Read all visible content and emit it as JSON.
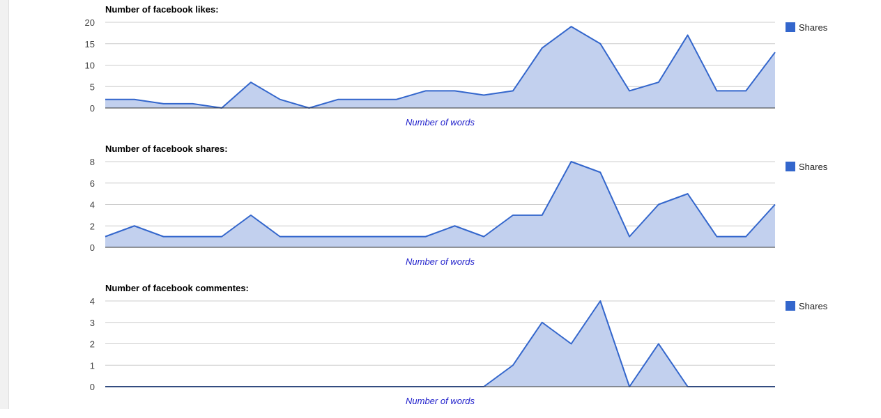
{
  "colors": {
    "series": "#3366cc",
    "fill": "#c2d0ee",
    "grid": "#cccccc"
  },
  "chart_data": [
    {
      "type": "area",
      "title": "Number of facebook likes:",
      "xlabel": "Number of words",
      "ylabel": "",
      "ylim": [
        0,
        20
      ],
      "yticks": [
        0,
        5,
        10,
        15,
        20
      ],
      "legend": {
        "position": "right",
        "entries": [
          "Shares"
        ]
      },
      "series": [
        {
          "name": "Shares",
          "values": [
            2,
            2,
            1,
            1,
            0,
            6,
            2,
            0,
            2,
            2,
            2,
            4,
            4,
            3,
            4,
            14,
            19,
            15,
            4,
            6,
            17,
            4,
            4,
            13
          ]
        }
      ]
    },
    {
      "type": "area",
      "title": "Number of facebook shares:",
      "xlabel": "Number of words",
      "ylabel": "",
      "ylim": [
        0,
        8
      ],
      "yticks": [
        0,
        2,
        4,
        6,
        8
      ],
      "legend": {
        "position": "right",
        "entries": [
          "Shares"
        ]
      },
      "series": [
        {
          "name": "Shares",
          "values": [
            1,
            2,
            1,
            1,
            1,
            3,
            1,
            1,
            1,
            1,
            1,
            1,
            2,
            1,
            3,
            3,
            8,
            7,
            1,
            4,
            5,
            1,
            1,
            4
          ]
        }
      ]
    },
    {
      "type": "area",
      "title": "Number of facebook commentes:",
      "xlabel": "Number of words",
      "ylabel": "",
      "ylim": [
        0,
        4
      ],
      "yticks": [
        0,
        1,
        2,
        3,
        4
      ],
      "legend": {
        "position": "right",
        "entries": [
          "Shares"
        ]
      },
      "series": [
        {
          "name": "Shares",
          "values": [
            0,
            0,
            0,
            0,
            0,
            0,
            0,
            0,
            0,
            0,
            0,
            0,
            0,
            0,
            1,
            3,
            2,
            4,
            0,
            2,
            0,
            0,
            0,
            0
          ]
        }
      ]
    }
  ]
}
